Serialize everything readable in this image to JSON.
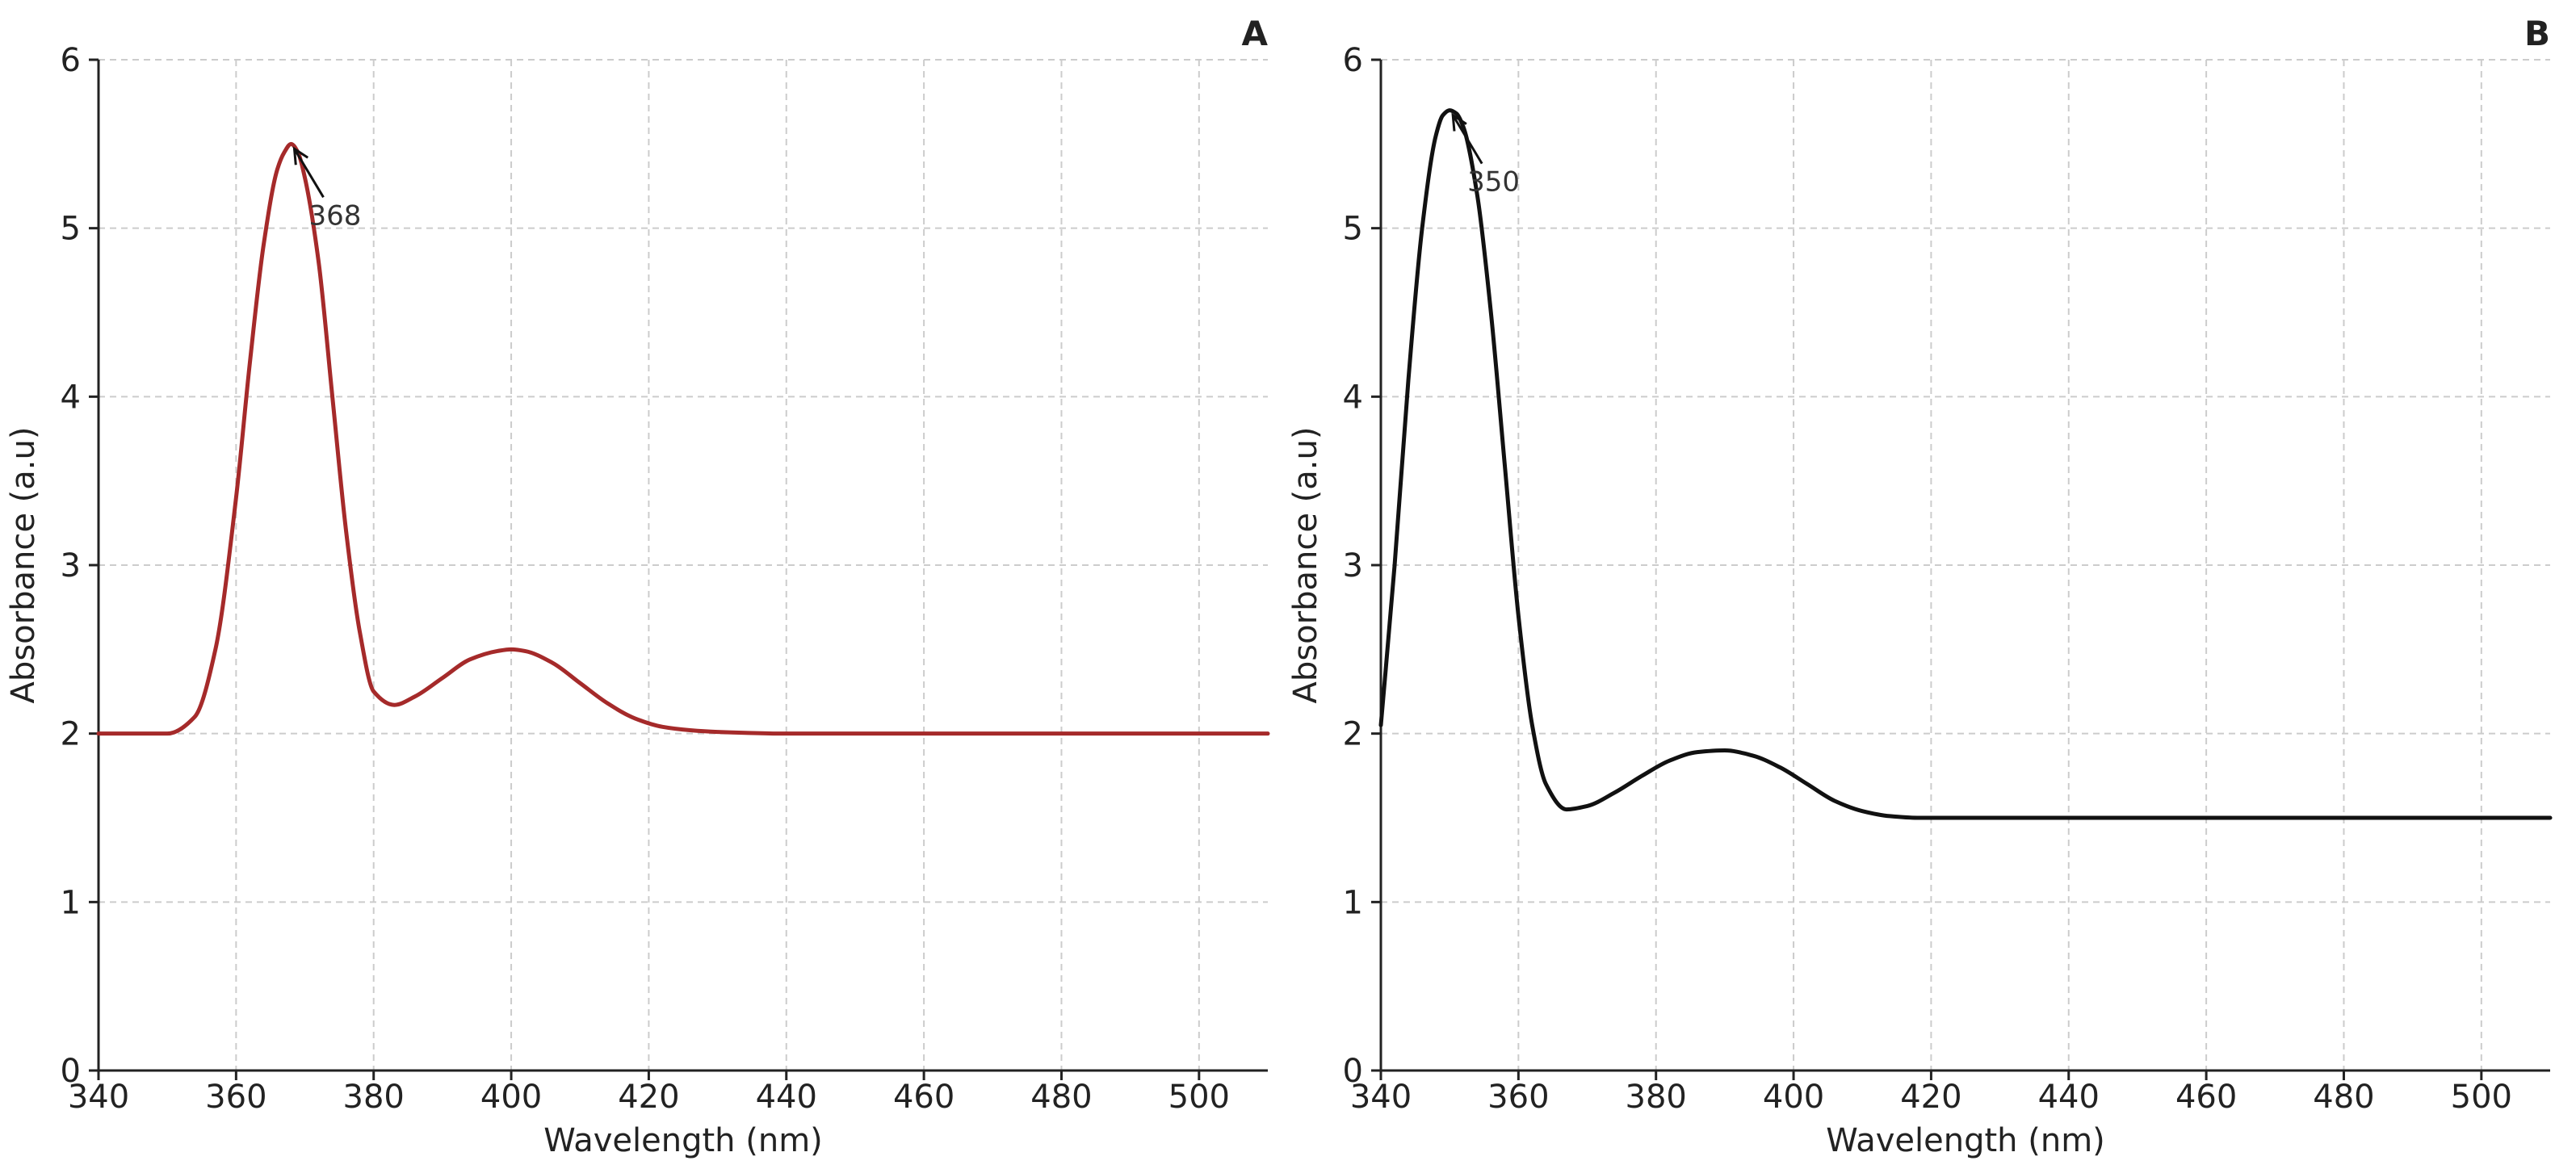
{
  "chart_data": [
    {
      "type": "line",
      "panel_label": "A",
      "xlabel": "Wavelength (nm)",
      "ylabel": "Absorbance (a.u)",
      "xlim": [
        340,
        510
      ],
      "ylim": [
        0,
        6
      ],
      "xticks": [
        340,
        360,
        380,
        400,
        420,
        440,
        460,
        480,
        500
      ],
      "yticks": [
        0,
        1,
        2,
        3,
        4,
        5,
        6
      ],
      "grid": true,
      "series": [
        {
          "color": "#a52a2a",
          "x": [
            340,
            350,
            354,
            357,
            360,
            362,
            364,
            366,
            367,
            368,
            369,
            370,
            372,
            374,
            376,
            378,
            380,
            383,
            386,
            390,
            394,
            398,
            400,
            402,
            406,
            410,
            414,
            418,
            422,
            426,
            430,
            440,
            450,
            460,
            480,
            500,
            510
          ],
          "y": [
            2.0,
            2.0,
            2.1,
            2.5,
            3.4,
            4.2,
            4.9,
            5.35,
            5.45,
            5.5,
            5.45,
            5.3,
            4.8,
            4.0,
            3.2,
            2.6,
            2.25,
            2.17,
            2.22,
            2.33,
            2.44,
            2.49,
            2.5,
            2.49,
            2.42,
            2.3,
            2.18,
            2.09,
            2.04,
            2.02,
            2.01,
            2.0,
            2.0,
            2.0,
            2.0,
            2.0,
            2.0
          ]
        }
      ],
      "annotations": [
        {
          "text": "368",
          "x": 368,
          "y": 5.5
        }
      ]
    },
    {
      "type": "line",
      "panel_label": "B",
      "xlabel": "Wavelength (nm)",
      "ylabel": "Absorbance (a.u)",
      "xlim": [
        340,
        510
      ],
      "ylim": [
        0,
        6
      ],
      "xticks": [
        340,
        360,
        380,
        400,
        420,
        440,
        460,
        480,
        500
      ],
      "yticks": [
        0,
        1,
        2,
        3,
        4,
        5,
        6
      ],
      "grid": true,
      "series": [
        {
          "color": "#111111",
          "x": [
            340,
            342,
            344,
            346,
            348,
            349,
            350,
            351,
            352,
            354,
            356,
            358,
            360,
            362,
            364,
            367,
            370,
            374,
            378,
            382,
            386,
            390,
            394,
            398,
            402,
            406,
            410,
            414,
            418,
            422,
            430,
            440,
            460,
            480,
            500,
            510
          ],
          "y": [
            2.05,
            3.0,
            4.1,
            5.0,
            5.55,
            5.67,
            5.7,
            5.68,
            5.6,
            5.2,
            4.5,
            3.6,
            2.7,
            2.05,
            1.7,
            1.55,
            1.57,
            1.65,
            1.75,
            1.84,
            1.89,
            1.9,
            1.87,
            1.8,
            1.7,
            1.6,
            1.54,
            1.51,
            1.5,
            1.5,
            1.5,
            1.5,
            1.5,
            1.5,
            1.5,
            1.5
          ]
        }
      ],
      "annotations": [
        {
          "text": "350",
          "x": 350,
          "y": 5.7
        }
      ]
    }
  ]
}
